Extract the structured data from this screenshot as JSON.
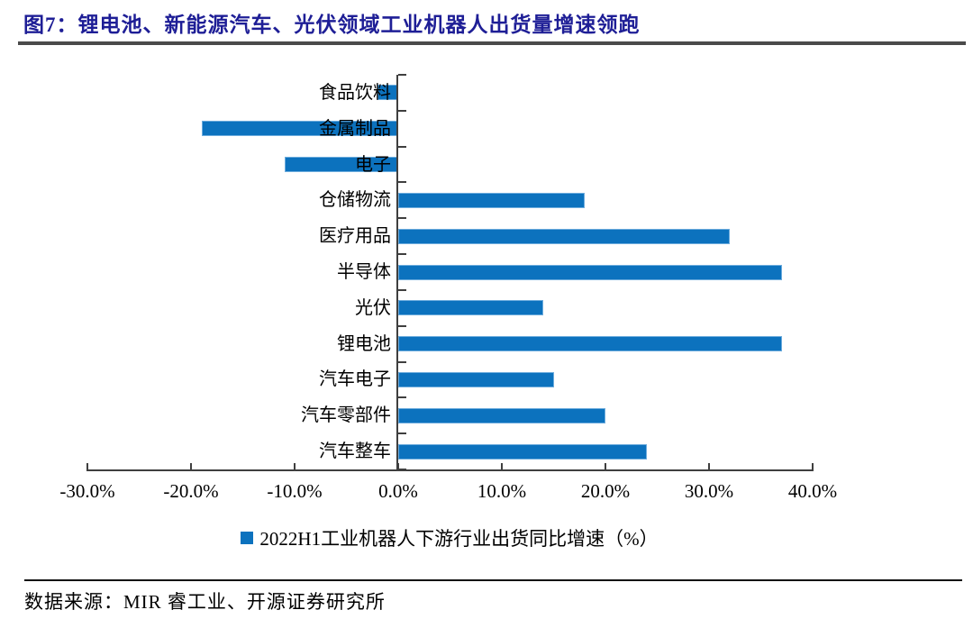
{
  "page": {
    "title": "图7：锂电池、新能源汽车、光伏领域工业机器人出货量增速领跑",
    "title_color": "#1E1E96",
    "rule_color": "#4A4A4A",
    "source_label": "数据来源：MIR 睿工业、开源证券研究所"
  },
  "chart_data": {
    "type": "bar",
    "orientation": "horizontal",
    "title": "",
    "legend": "2022H1工业机器人下游行业出货同比增速（%）",
    "legend_position": "bottom",
    "categories": [
      "食品饮料",
      "金属制品",
      "电子",
      "仓储物流",
      "医疗用品",
      "半导体",
      "光伏",
      "锂电池",
      "汽车电子",
      "汽车零部件",
      "汽车整车"
    ],
    "values": [
      -2,
      -19,
      -11,
      18,
      32,
      37,
      14,
      37,
      15,
      20,
      24
    ],
    "unit": "%",
    "xlim": [
      -30,
      40
    ],
    "x_tick_values": [
      -30,
      -20,
      -10,
      0,
      10,
      20,
      30,
      40
    ],
    "x_tick_labels": [
      "-30.0%",
      "-20.0%",
      "-10.0%",
      "0.0%",
      "10.0%",
      "20.0%",
      "30.0%",
      "40.0%"
    ],
    "grid": false,
    "bar_color": "#0C72BE",
    "axis_color": "#3F3F3F"
  }
}
